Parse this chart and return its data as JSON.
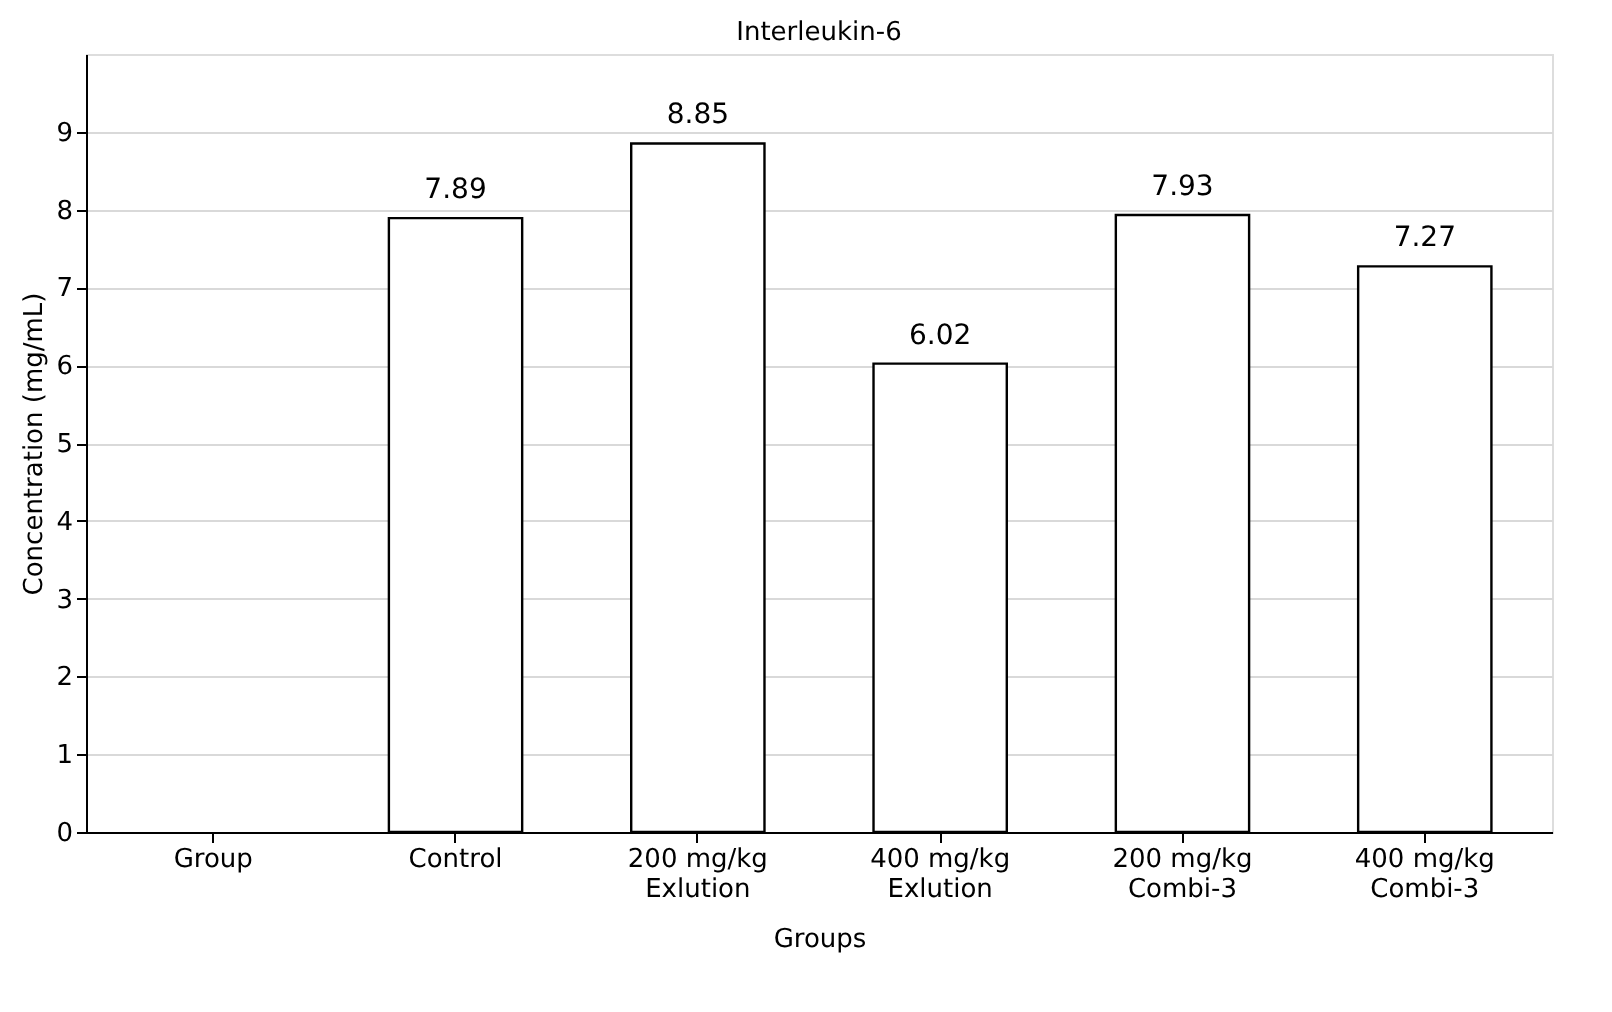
{
  "chart_data": {
    "type": "bar",
    "title": "Interleukin-6",
    "xlabel": "Groups",
    "ylabel": "Concentration (mg/mL)",
    "categories": [
      "Group",
      "Control",
      "200 mg/kg\nExlution",
      "400 mg/kg\nExlution",
      "200 mg/kg\nCombi-3",
      "400 mg/kg\nCombi-3"
    ],
    "values": [
      null,
      7.89,
      8.85,
      6.02,
      7.93,
      7.27
    ],
    "color": "#ffffff",
    "ylim": [
      0,
      10
    ],
    "yticks": [
      0,
      1,
      2,
      3,
      4,
      5,
      6,
      7,
      8,
      9
    ],
    "grid": "y",
    "data_labels": true
  }
}
